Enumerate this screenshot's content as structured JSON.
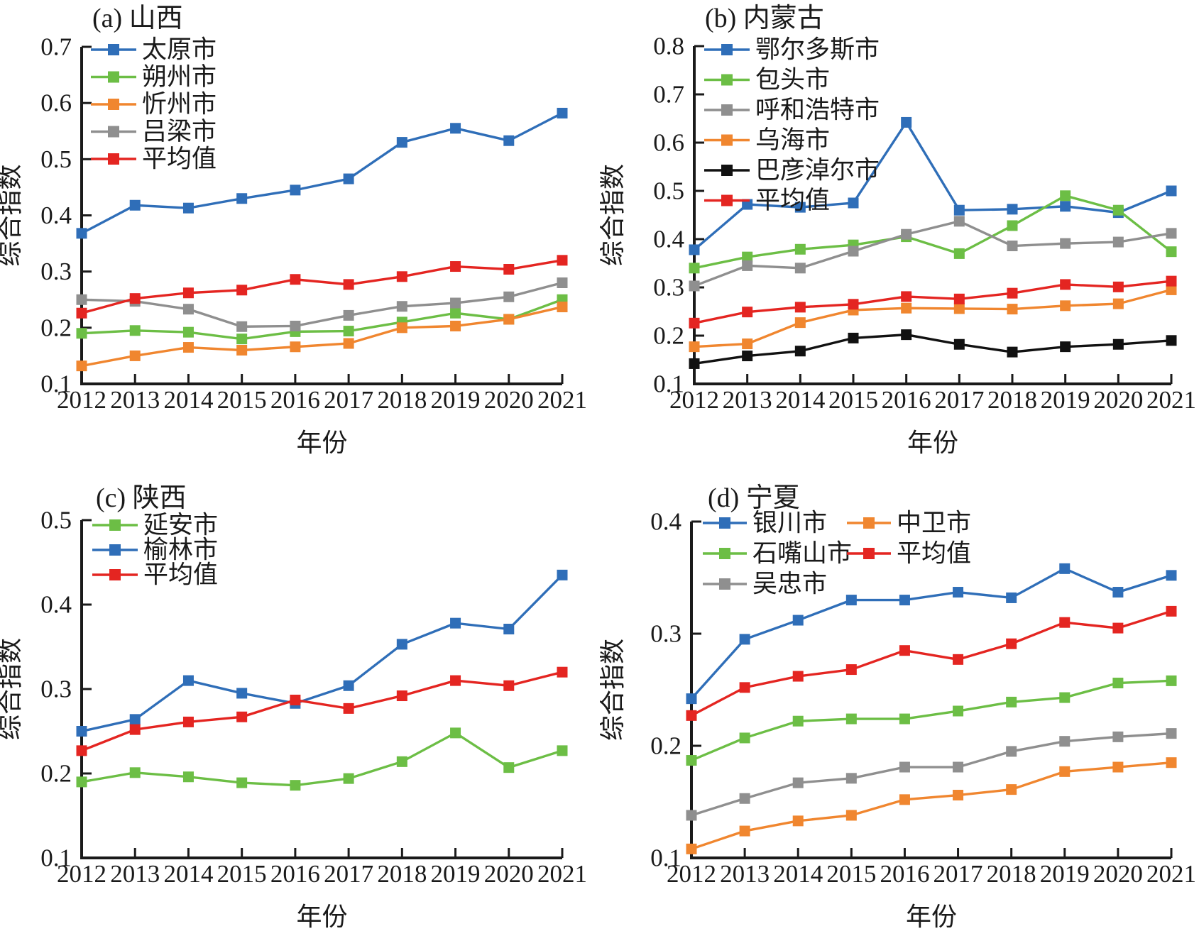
{
  "figure": {
    "xlabel": "年份",
    "ylabel": "综合指数",
    "years": [
      2012,
      2013,
      2014,
      2015,
      2016,
      2017,
      2018,
      2019,
      2020,
      2021
    ]
  },
  "chart_data": [
    {
      "id": "a",
      "type": "line",
      "title": "(a) 山西",
      "xlabel": "年份",
      "ylabel": "综合指数",
      "x": [
        2012,
        2013,
        2014,
        2015,
        2016,
        2017,
        2018,
        2019,
        2020,
        2021
      ],
      "ylim": [
        0.1,
        0.7
      ],
      "ytick_step": 0.1,
      "grid": false,
      "legend_position": "top-left-inside",
      "legend_columns": 1,
      "legend_col_break": 5,
      "series": [
        {
          "name": "太原市",
          "color": "#2F6EB8",
          "values": [
            0.368,
            0.418,
            0.413,
            0.43,
            0.445,
            0.465,
            0.53,
            0.555,
            0.533,
            0.582
          ]
        },
        {
          "name": "朔州市",
          "color": "#6CBE45",
          "values": [
            0.19,
            0.195,
            0.192,
            0.18,
            0.193,
            0.194,
            0.21,
            0.226,
            0.215,
            0.25
          ]
        },
        {
          "name": "忻州市",
          "color": "#F0862F",
          "values": [
            0.132,
            0.15,
            0.165,
            0.16,
            0.166,
            0.172,
            0.2,
            0.203,
            0.215,
            0.237
          ]
        },
        {
          "name": "吕梁市",
          "color": "#8F8F8F",
          "values": [
            0.25,
            0.247,
            0.233,
            0.202,
            0.203,
            0.222,
            0.238,
            0.244,
            0.255,
            0.28
          ]
        },
        {
          "name": "平均值",
          "color": "#E42521",
          "values": [
            0.226,
            0.252,
            0.262,
            0.267,
            0.286,
            0.277,
            0.291,
            0.309,
            0.304,
            0.32
          ]
        }
      ]
    },
    {
      "id": "b",
      "type": "line",
      "title": "(b) 内蒙古",
      "xlabel": "年份",
      "ylabel": "综合指数",
      "x": [
        2012,
        2013,
        2014,
        2015,
        2016,
        2017,
        2018,
        2019,
        2020,
        2021
      ],
      "ylim": [
        0.1,
        0.8
      ],
      "ytick_step": 0.1,
      "grid": false,
      "legend_position": "top-left-inside",
      "legend_columns": 1,
      "legend_col_break": 6,
      "series": [
        {
          "name": "鄂尔多斯市",
          "color": "#2F6EB8",
          "values": [
            0.378,
            0.472,
            0.466,
            0.475,
            0.642,
            0.46,
            0.462,
            0.468,
            0.455,
            0.5
          ]
        },
        {
          "name": "包头市",
          "color": "#6CBE45",
          "values": [
            0.34,
            0.363,
            0.379,
            0.388,
            0.405,
            0.37,
            0.428,
            0.49,
            0.46,
            0.374
          ]
        },
        {
          "name": "呼和浩特市",
          "color": "#8F8F8F",
          "values": [
            0.303,
            0.345,
            0.34,
            0.375,
            0.41,
            0.437,
            0.386,
            0.391,
            0.394,
            0.412
          ]
        },
        {
          "name": "乌海市",
          "color": "#F0862F",
          "values": [
            0.177,
            0.183,
            0.227,
            0.253,
            0.257,
            0.256,
            0.255,
            0.262,
            0.266,
            0.295
          ]
        },
        {
          "name": "巴彦淖尔市",
          "color": "#111111",
          "values": [
            0.142,
            0.158,
            0.168,
            0.195,
            0.202,
            0.182,
            0.166,
            0.177,
            0.182,
            0.19
          ]
        },
        {
          "name": "平均值",
          "color": "#E42521",
          "values": [
            0.226,
            0.249,
            0.259,
            0.265,
            0.281,
            0.276,
            0.288,
            0.306,
            0.301,
            0.313
          ]
        }
      ]
    },
    {
      "id": "c",
      "type": "line",
      "title": "(c) 陕西",
      "xlabel": "年份",
      "ylabel": "综合指数",
      "x": [
        2012,
        2013,
        2014,
        2015,
        2016,
        2017,
        2018,
        2019,
        2020,
        2021
      ],
      "ylim": [
        0.1,
        0.5
      ],
      "ytick_step": 0.1,
      "grid": false,
      "legend_position": "top-left-inside",
      "legend_columns": 1,
      "legend_col_break": 3,
      "series": [
        {
          "name": "延安市",
          "color": "#6CBE45",
          "values": [
            0.19,
            0.201,
            0.196,
            0.189,
            0.186,
            0.194,
            0.214,
            0.248,
            0.207,
            0.227
          ]
        },
        {
          "name": "榆林市",
          "color": "#2F6EB8",
          "values": [
            0.25,
            0.264,
            0.31,
            0.295,
            0.283,
            0.304,
            0.353,
            0.378,
            0.371,
            0.435
          ]
        },
        {
          "name": "平均值",
          "color": "#E42521",
          "values": [
            0.227,
            0.252,
            0.261,
            0.267,
            0.287,
            0.277,
            0.292,
            0.31,
            0.304,
            0.32
          ]
        }
      ]
    },
    {
      "id": "d",
      "type": "line",
      "title": "(d) 宁夏",
      "xlabel": "年份",
      "ylabel": "综合指数",
      "x": [
        2012,
        2013,
        2014,
        2015,
        2016,
        2017,
        2018,
        2019,
        2020,
        2021
      ],
      "ylim": [
        0.1,
        0.4
      ],
      "ytick_step": 0.1,
      "grid": false,
      "legend_position": "top-left-inside",
      "legend_columns": 2,
      "legend_col_break": 3,
      "series": [
        {
          "name": "银川市",
          "color": "#2F6EB8",
          "values": [
            0.242,
            0.295,
            0.312,
            0.33,
            0.33,
            0.337,
            0.332,
            0.358,
            0.337,
            0.352
          ]
        },
        {
          "name": "石嘴山市",
          "color": "#6CBE45",
          "values": [
            0.187,
            0.207,
            0.222,
            0.224,
            0.224,
            0.231,
            0.239,
            0.243,
            0.256,
            0.258
          ]
        },
        {
          "name": "吴忠市",
          "color": "#8F8F8F",
          "values": [
            0.138,
            0.153,
            0.167,
            0.171,
            0.181,
            0.181,
            0.195,
            0.204,
            0.208,
            0.211
          ]
        },
        {
          "name": "中卫市",
          "color": "#F0862F",
          "values": [
            0.108,
            0.124,
            0.133,
            0.138,
            0.152,
            0.156,
            0.161,
            0.177,
            0.181,
            0.185
          ]
        },
        {
          "name": "平均值",
          "color": "#E42521",
          "values": [
            0.227,
            0.252,
            0.262,
            0.268,
            0.285,
            0.277,
            0.291,
            0.31,
            0.305,
            0.32
          ]
        }
      ]
    }
  ]
}
